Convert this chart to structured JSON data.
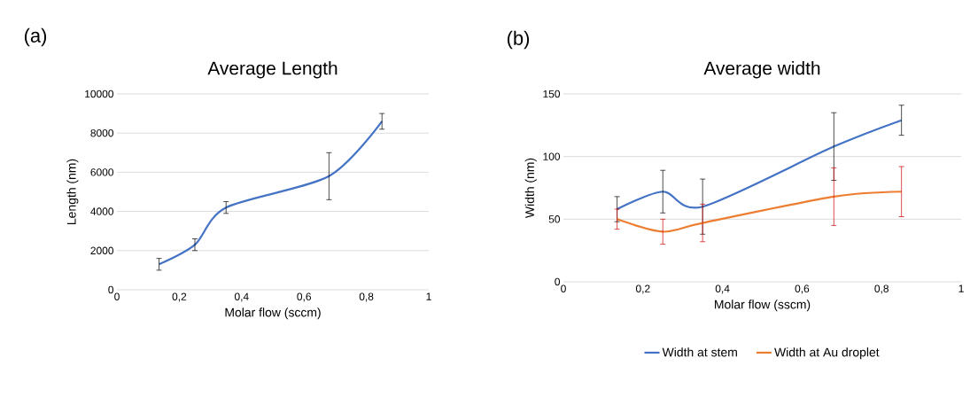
{
  "chart_data": [
    {
      "type": "line",
      "title": "Average Length",
      "xlabel": "Molar flow (sccm)",
      "ylabel": "Length (nm)",
      "annotations": [
        "(a)"
      ],
      "x": [
        0.135,
        0.25,
        0.35,
        0.68,
        0.85
      ],
      "series": [
        {
          "color": "#4472c4",
          "values": [
            1300,
            2300,
            4200,
            5800,
            8600
          ],
          "errors": [
            300,
            300,
            300,
            1200,
            400
          ]
        }
      ],
      "xlim": [
        0,
        1
      ],
      "ylim": [
        0,
        10000
      ],
      "xticks": [
        0,
        {
          "value": 0.2,
          "label": "0,2"
        },
        {
          "value": 0.4,
          "label": "0,4"
        },
        {
          "value": 0.6,
          "label": "0,6"
        },
        {
          "value": 0.8,
          "label": "0,8"
        },
        1
      ],
      "yticks": [
        0,
        2000,
        4000,
        6000,
        8000,
        10000
      ],
      "grid": "y",
      "legend": false
    },
    {
      "type": "line",
      "title": "Average width",
      "xlabel": "Molar flow (sscm)",
      "ylabel": "Width (nm)",
      "annotations": [
        "(b)"
      ],
      "x": [
        0.135,
        0.25,
        0.35,
        0.68,
        0.85
      ],
      "series": [
        {
          "name": "Width at stem",
          "color": "#4472c4",
          "values": [
            58,
            72,
            60,
            108,
            129
          ],
          "errors": [
            10,
            17,
            22,
            27,
            12
          ]
        },
        {
          "name": "Width at Au droplet",
          "color": "#ed7d31",
          "values": [
            50,
            40,
            47,
            68,
            72
          ],
          "errors": [
            8,
            10,
            15,
            23,
            20
          ]
        }
      ],
      "xlim": [
        0,
        1
      ],
      "ylim": [
        0,
        150
      ],
      "xticks": [
        0,
        {
          "value": 0.2,
          "label": "0,2"
        },
        {
          "value": 0.4,
          "label": "0,4"
        },
        {
          "value": 0.6,
          "label": "0,6"
        },
        {
          "value": 0.8,
          "label": "0,8"
        },
        1
      ],
      "yticks": [
        0,
        50,
        100,
        150
      ],
      "grid": "y",
      "legend": "bottom"
    }
  ]
}
